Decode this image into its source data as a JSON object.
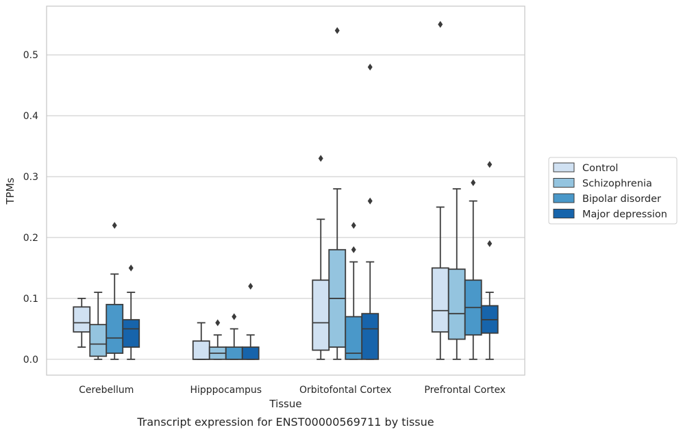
{
  "chart_data": {
    "type": "box",
    "title": "",
    "caption": "Transcript expression for ENST00000569711 by tissue",
    "xlabel": "Tissue",
    "ylabel": "TPMs",
    "ylim": [
      -0.026,
      0.58
    ],
    "yticks": [
      0.0,
      0.1,
      0.2,
      0.3,
      0.4,
      0.5
    ],
    "ytick_labels": [
      "0.0",
      "0.1",
      "0.2",
      "0.3",
      "0.4",
      "0.5"
    ],
    "grid": "horizontal",
    "legend_position": "right",
    "categories": [
      "Cerebellum",
      "Hipppocampus",
      "Orbitofontal Cortex",
      "Prefrontal Cortex"
    ],
    "series": [
      {
        "name": "Control",
        "color": "#d0e1f2",
        "boxes": [
          {
            "whisker_low": 0.02,
            "q1": 0.045,
            "median": 0.06,
            "q3": 0.086,
            "whisker_high": 0.1,
            "outliers": []
          },
          {
            "whisker_low": 0.0,
            "q1": 0.0,
            "median": 0.0,
            "q3": 0.03,
            "whisker_high": 0.06,
            "outliers": []
          },
          {
            "whisker_low": 0.0,
            "q1": 0.015,
            "median": 0.06,
            "q3": 0.13,
            "whisker_high": 0.23,
            "outliers": [
              0.33
            ]
          },
          {
            "whisker_low": 0.0,
            "q1": 0.045,
            "median": 0.08,
            "q3": 0.15,
            "whisker_high": 0.25,
            "outliers": [
              0.55
            ]
          }
        ]
      },
      {
        "name": "Schizophrenia",
        "color": "#94c4df",
        "boxes": [
          {
            "whisker_low": 0.0,
            "q1": 0.005,
            "median": 0.025,
            "q3": 0.057,
            "whisker_high": 0.11,
            "outliers": []
          },
          {
            "whisker_low": 0.0,
            "q1": 0.0,
            "median": 0.01,
            "q3": 0.02,
            "whisker_high": 0.04,
            "outliers": [
              0.06
            ]
          },
          {
            "whisker_low": 0.0,
            "q1": 0.02,
            "median": 0.1,
            "q3": 0.18,
            "whisker_high": 0.28,
            "outliers": [
              0.54
            ]
          },
          {
            "whisker_low": 0.0,
            "q1": 0.033,
            "median": 0.075,
            "q3": 0.148,
            "whisker_high": 0.28,
            "outliers": []
          }
        ]
      },
      {
        "name": "Bipolar disorder",
        "color": "#4a98c9",
        "boxes": [
          {
            "whisker_low": 0.0,
            "q1": 0.01,
            "median": 0.035,
            "q3": 0.09,
            "whisker_high": 0.14,
            "outliers": [
              0.22
            ]
          },
          {
            "whisker_low": 0.0,
            "q1": 0.0,
            "median": 0.0,
            "q3": 0.02,
            "whisker_high": 0.05,
            "outliers": [
              0.07
            ]
          },
          {
            "whisker_low": 0.0,
            "q1": 0.0,
            "median": 0.01,
            "q3": 0.07,
            "whisker_high": 0.16,
            "outliers": [
              0.18,
              0.22
            ]
          },
          {
            "whisker_low": 0.0,
            "q1": 0.04,
            "median": 0.085,
            "q3": 0.13,
            "whisker_high": 0.26,
            "outliers": [
              0.29
            ]
          }
        ]
      },
      {
        "name": "Major depression",
        "color": "#1764ab",
        "boxes": [
          {
            "whisker_low": 0.0,
            "q1": 0.02,
            "median": 0.05,
            "q3": 0.065,
            "whisker_high": 0.11,
            "outliers": [
              0.15
            ]
          },
          {
            "whisker_low": 0.0,
            "q1": 0.0,
            "median": 0.0,
            "q3": 0.02,
            "whisker_high": 0.04,
            "outliers": [
              0.12
            ]
          },
          {
            "whisker_low": 0.0,
            "q1": 0.0,
            "median": 0.05,
            "q3": 0.075,
            "whisker_high": 0.16,
            "outliers": [
              0.26,
              0.48
            ]
          },
          {
            "whisker_low": 0.0,
            "q1": 0.043,
            "median": 0.065,
            "q3": 0.088,
            "whisker_high": 0.11,
            "outliers": [
              0.19,
              0.32
            ]
          }
        ]
      }
    ],
    "colors": {
      "edge": "#3b3b3b",
      "grid": "#cccccc",
      "frame": "#c8c8c8",
      "text": "#262626"
    }
  }
}
